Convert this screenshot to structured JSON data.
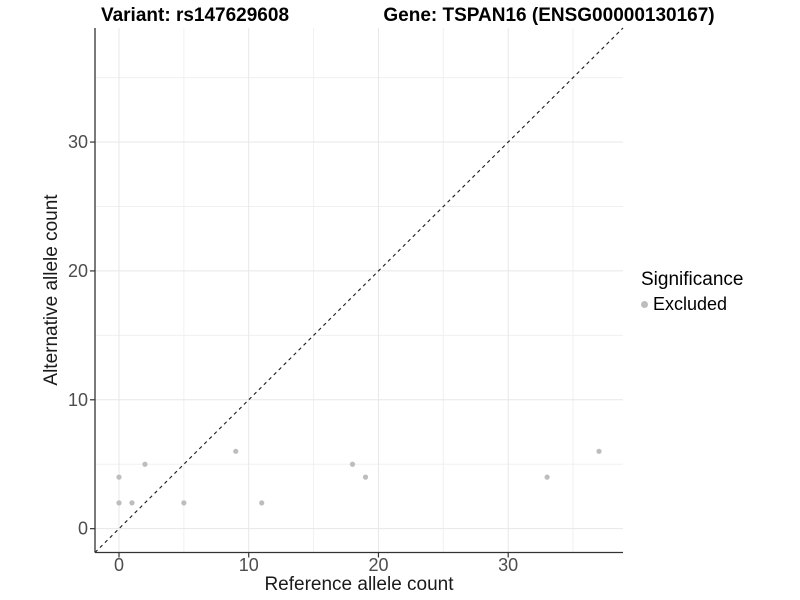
{
  "chart_data": {
    "type": "scatter",
    "title_left": "Variant: rs147629608",
    "title_right": "Gene: TSPAN16 (ENSG00000130167)",
    "xlabel": "Reference allele count",
    "ylabel": "Alternative allele count",
    "xlim": [
      -1.85,
      38.85
    ],
    "ylim": [
      -1.85,
      38.85
    ],
    "x_major_ticks": [
      0,
      10,
      20,
      30
    ],
    "x_minor_gridlines": [
      5,
      15,
      25,
      35
    ],
    "y_major_ticks": [
      0,
      10,
      20,
      30
    ],
    "y_minor_gridlines": [
      5,
      15,
      25,
      35
    ],
    "grid": true,
    "legend_position": "right",
    "identity_line": {
      "style": "dashed",
      "from": -1.85,
      "to": 38.85
    },
    "series": [
      {
        "name": "Excluded",
        "color": "#bdbdbd",
        "points": [
          {
            "x": 0,
            "y": 2
          },
          {
            "x": 0,
            "y": 4
          },
          {
            "x": 1,
            "y": 2
          },
          {
            "x": 2,
            "y": 5
          },
          {
            "x": 5,
            "y": 2
          },
          {
            "x": 9,
            "y": 6
          },
          {
            "x": 11,
            "y": 2
          },
          {
            "x": 18,
            "y": 5
          },
          {
            "x": 19,
            "y": 4
          },
          {
            "x": 33,
            "y": 4
          },
          {
            "x": 37,
            "y": 6
          }
        ]
      }
    ]
  },
  "legend": {
    "title": "Significance",
    "items": [
      {
        "label": "Excluded",
        "color": "#bdbdbd"
      }
    ]
  },
  "colors": {
    "point": "#bdbdbd",
    "grid_major": "#e7e7e7",
    "grid_minor": "#f0f0f0",
    "axis_line": "#333333",
    "tick_label": "#4d4d4d",
    "dashed_line": "#1a1a1a"
  }
}
